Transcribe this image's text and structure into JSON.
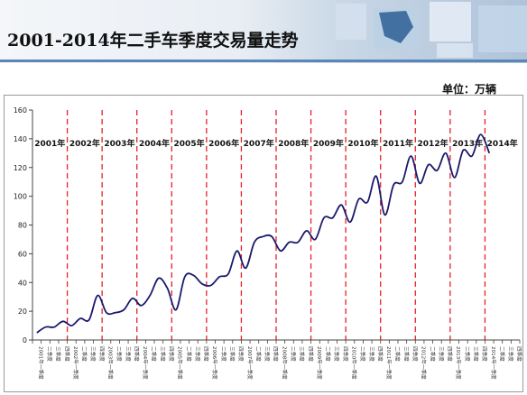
{
  "header": {
    "title": "2001-2014年二手车季度交易量走势",
    "unit_label": "单位：万辆"
  },
  "colors": {
    "line": "#1a1a6e",
    "year_divider": "#e8202a",
    "header_rule": "#5b86b5"
  },
  "chart_data": {
    "type": "line",
    "title": "2001-2014年二手车季度交易量走势",
    "ylabel": "万辆",
    "ylim": [
      0,
      160
    ],
    "yticks": [
      0,
      20,
      40,
      60,
      80,
      100,
      120,
      140,
      160
    ],
    "grid": false,
    "legend": "none",
    "quarter_labels": [
      "一季度",
      "二季度",
      "三季度",
      "四季度"
    ],
    "years": [
      {
        "label": "2001年",
        "axis_label": "2001年"
      },
      {
        "label": "2002年",
        "axis_label": "2002年"
      },
      {
        "label": "2003年",
        "axis_label": "2003年"
      },
      {
        "label": "2004年",
        "axis_label": "2004年"
      },
      {
        "label": "2005年",
        "axis_label": "2005年"
      },
      {
        "label": "2006年",
        "axis_label": "2006年"
      },
      {
        "label": "2007年",
        "axis_label": "2007年"
      },
      {
        "label": "2008年",
        "axis_label": "2008年"
      },
      {
        "label": "2009年",
        "axis_label": "2009年"
      },
      {
        "label": "2010年",
        "axis_label": "2010年"
      },
      {
        "label": "2011年",
        "axis_label": "2011年"
      },
      {
        "label": "2012年",
        "axis_label": "2012年"
      },
      {
        "label": "2013年",
        "axis_label": "2013年"
      },
      {
        "label": "2014年",
        "axis_label": "2014年"
      }
    ],
    "series": [
      {
        "values": [
          5,
          9,
          9,
          13,
          10,
          15,
          14,
          31,
          19,
          19,
          21,
          29,
          24,
          31,
          43,
          36,
          21,
          44,
          45,
          39,
          38,
          44,
          46,
          62,
          50,
          68,
          72,
          72,
          62,
          68,
          68,
          76,
          70,
          85,
          85,
          94,
          82,
          98,
          96,
          114,
          87,
          108,
          110,
          128,
          109,
          122,
          118,
          130,
          113,
          132,
          128,
          143,
          130
        ]
      }
    ]
  }
}
